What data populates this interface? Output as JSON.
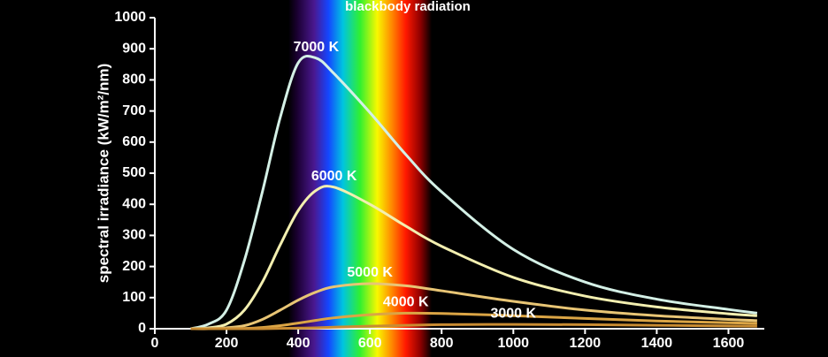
{
  "chart_data": {
    "type": "line",
    "title": "blackbody radiation",
    "y_label": "spectral irradiance (kW/m²/nm)",
    "x": [
      100,
      150,
      200,
      250,
      300,
      350,
      400,
      450,
      500,
      600,
      700,
      800,
      1000,
      1200,
      1400,
      1600,
      1680
    ],
    "series": [
      {
        "name": "7000 K",
        "color": "#d4f0e6",
        "values": [
          0,
          15,
          60,
          220,
          440,
          680,
          855,
          870,
          820,
          695,
          560,
          440,
          255,
          150,
          95,
          62,
          50
        ]
      },
      {
        "name": "6000 K",
        "color": "#f3efb0",
        "values": [
          0,
          3,
          15,
          60,
          150,
          270,
          380,
          445,
          455,
          400,
          330,
          265,
          165,
          105,
          70,
          48,
          42
        ]
      },
      {
        "name": "5000 K",
        "color": "#e8c575",
        "values": [
          0,
          0,
          3,
          10,
          30,
          60,
          92,
          118,
          135,
          145,
          138,
          122,
          88,
          60,
          42,
          30,
          26
        ]
      },
      {
        "name": "4000 K",
        "color": "#dba545",
        "values": [
          0,
          0,
          0,
          1,
          4,
          10,
          18,
          27,
          35,
          45,
          50,
          49,
          42,
          33,
          25,
          19,
          17
        ]
      },
      {
        "name": "3000 K",
        "color": "#c98c32",
        "values": [
          0,
          0,
          0,
          0,
          0,
          1,
          2,
          3,
          5,
          8,
          11,
          13,
          14,
          13,
          11,
          9,
          8
        ]
      }
    ],
    "xlim": [
      0,
      1700
    ],
    "ylim": [
      0,
      1000
    ],
    "xticks": [
      0,
      200,
      400,
      600,
      800,
      1000,
      1200,
      1400,
      1600
    ],
    "yticks": [
      0,
      100,
      200,
      300,
      400,
      500,
      600,
      700,
      800,
      900,
      1000
    ]
  }
}
